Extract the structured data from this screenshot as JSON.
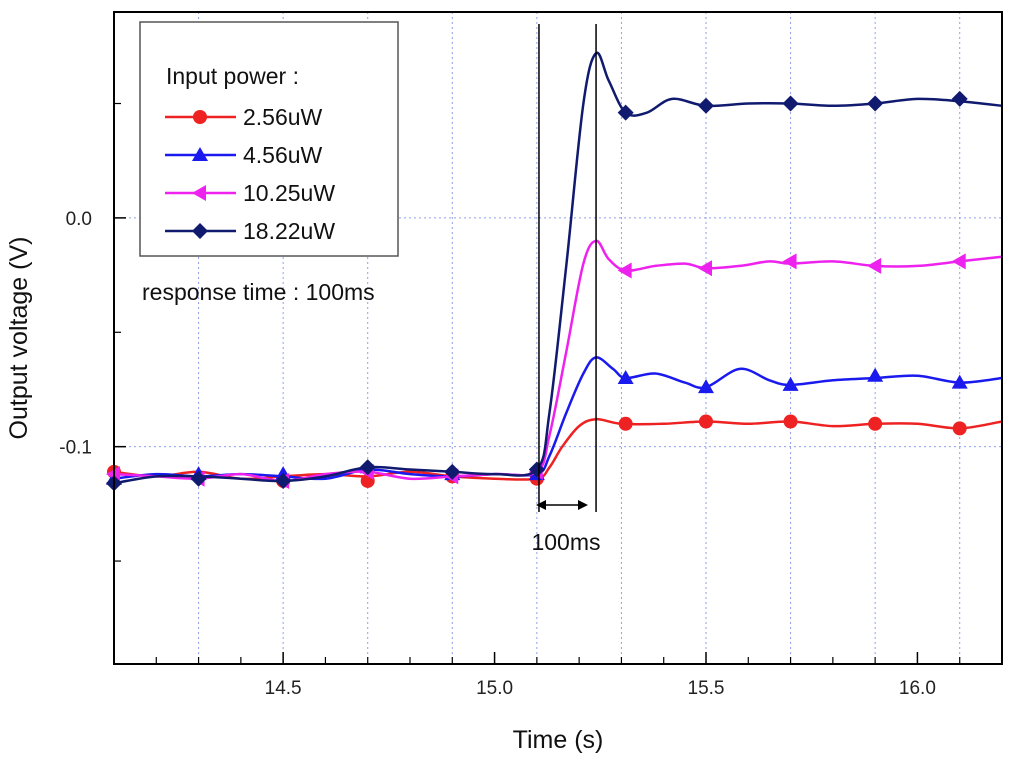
{
  "chart_data": {
    "type": "line",
    "title": "",
    "xlabel": "Time (s)",
    "ylabel": "Output voltage (V)",
    "xlim": [
      14.1,
      16.2
    ],
    "ylim": [
      -0.195,
      0.09
    ],
    "x_ticks": [
      {
        "value": 14.5,
        "label": "14.5"
      },
      {
        "value": 15.0,
        "label": "15.0"
      },
      {
        "value": 15.5,
        "label": "15.5"
      },
      {
        "value": 16.0,
        "label": "16.0"
      }
    ],
    "x_minor_ticks": [
      14.2,
      14.3,
      14.4,
      14.6,
      14.7,
      14.8,
      14.9,
      15.1,
      15.2,
      15.3,
      15.4,
      15.6,
      15.7,
      15.8,
      15.9,
      16.1
    ],
    "y_ticks": [
      {
        "value": 0.0,
        "label": "0.0"
      },
      {
        "value": -0.1,
        "label": "-0.1"
      }
    ],
    "y_minor_ticks": [
      0.05,
      -0.05,
      -0.15
    ],
    "grid_x": [
      14.3,
      14.5,
      14.7,
      14.9,
      15.1,
      15.3,
      15.5,
      15.7,
      15.9,
      16.1
    ],
    "grid_y": [
      0.0,
      -0.1
    ],
    "grid": true,
    "legend": {
      "title": "Input power :",
      "position": "top-left"
    },
    "series": [
      {
        "name": "2.56uW",
        "color": "#ee2222",
        "marker": "circle",
        "line": [
          [
            14.1,
            -0.111
          ],
          [
            14.2,
            -0.113
          ],
          [
            14.3,
            -0.111
          ],
          [
            14.4,
            -0.114
          ],
          [
            14.5,
            -0.113
          ],
          [
            14.6,
            -0.112
          ],
          [
            14.7,
            -0.113
          ],
          [
            14.8,
            -0.111
          ],
          [
            14.9,
            -0.113
          ],
          [
            15.0,
            -0.114
          ],
          [
            15.1,
            -0.114
          ],
          [
            15.13,
            -0.109
          ],
          [
            15.16,
            -0.1
          ],
          [
            15.2,
            -0.091
          ],
          [
            15.24,
            -0.088
          ],
          [
            15.3,
            -0.09
          ],
          [
            15.4,
            -0.09
          ],
          [
            15.5,
            -0.089
          ],
          [
            15.6,
            -0.09
          ],
          [
            15.7,
            -0.089
          ],
          [
            15.8,
            -0.091
          ],
          [
            15.9,
            -0.09
          ],
          [
            16.0,
            -0.09
          ],
          [
            16.1,
            -0.092
          ],
          [
            16.2,
            -0.089
          ]
        ],
        "markers": [
          [
            14.1,
            -0.111
          ],
          [
            14.5,
            -0.115
          ],
          [
            14.7,
            -0.115
          ],
          [
            14.9,
            -0.113
          ],
          [
            15.1,
            -0.114
          ],
          [
            15.31,
            -0.09
          ],
          [
            15.5,
            -0.089
          ],
          [
            15.7,
            -0.089
          ],
          [
            15.9,
            -0.09
          ],
          [
            16.1,
            -0.092
          ]
        ]
      },
      {
        "name": "4.56uW",
        "color": "#1a1aee",
        "marker": "triangle-up",
        "line": [
          [
            14.1,
            -0.114
          ],
          [
            14.2,
            -0.112
          ],
          [
            14.3,
            -0.113
          ],
          [
            14.4,
            -0.112
          ],
          [
            14.5,
            -0.113
          ],
          [
            14.6,
            -0.114
          ],
          [
            14.7,
            -0.11
          ],
          [
            14.8,
            -0.112
          ],
          [
            14.9,
            -0.113
          ],
          [
            15.0,
            -0.112
          ],
          [
            15.1,
            -0.112
          ],
          [
            15.13,
            -0.104
          ],
          [
            15.17,
            -0.085
          ],
          [
            15.21,
            -0.068
          ],
          [
            15.24,
            -0.061
          ],
          [
            15.28,
            -0.066
          ],
          [
            15.31,
            -0.07
          ],
          [
            15.38,
            -0.068
          ],
          [
            15.45,
            -0.072
          ],
          [
            15.5,
            -0.074
          ],
          [
            15.58,
            -0.066
          ],
          [
            15.65,
            -0.071
          ],
          [
            15.7,
            -0.073
          ],
          [
            15.8,
            -0.071
          ],
          [
            15.9,
            -0.07
          ],
          [
            16.0,
            -0.069
          ],
          [
            16.1,
            -0.072
          ],
          [
            16.2,
            -0.07
          ]
        ],
        "markers": [
          [
            14.1,
            -0.114
          ],
          [
            14.3,
            -0.112
          ],
          [
            14.5,
            -0.112
          ],
          [
            14.7,
            -0.109
          ],
          [
            14.9,
            -0.112
          ],
          [
            15.1,
            -0.112
          ],
          [
            15.31,
            -0.07
          ],
          [
            15.5,
            -0.074
          ],
          [
            15.7,
            -0.073
          ],
          [
            15.9,
            -0.069
          ],
          [
            16.1,
            -0.072
          ]
        ]
      },
      {
        "name": "10.25uW",
        "color": "#ee22ee",
        "marker": "triangle-left",
        "line": [
          [
            14.1,
            -0.112
          ],
          [
            14.2,
            -0.113
          ],
          [
            14.3,
            -0.114
          ],
          [
            14.4,
            -0.112
          ],
          [
            14.5,
            -0.115
          ],
          [
            14.6,
            -0.112
          ],
          [
            14.7,
            -0.111
          ],
          [
            14.8,
            -0.114
          ],
          [
            14.9,
            -0.113
          ],
          [
            15.0,
            -0.112
          ],
          [
            15.1,
            -0.111
          ],
          [
            15.13,
            -0.095
          ],
          [
            15.17,
            -0.058
          ],
          [
            15.21,
            -0.02
          ],
          [
            15.24,
            -0.01
          ],
          [
            15.27,
            -0.018
          ],
          [
            15.31,
            -0.023
          ],
          [
            15.38,
            -0.021
          ],
          [
            15.45,
            -0.02
          ],
          [
            15.5,
            -0.022
          ],
          [
            15.58,
            -0.021
          ],
          [
            15.65,
            -0.019
          ],
          [
            15.7,
            -0.02
          ],
          [
            15.8,
            -0.019
          ],
          [
            15.9,
            -0.021
          ],
          [
            16.0,
            -0.021
          ],
          [
            16.1,
            -0.019
          ],
          [
            16.2,
            -0.017
          ]
        ],
        "markers": [
          [
            14.1,
            -0.112
          ],
          [
            14.3,
            -0.114
          ],
          [
            14.5,
            -0.115
          ],
          [
            14.7,
            -0.111
          ],
          [
            14.9,
            -0.113
          ],
          [
            15.1,
            -0.111
          ],
          [
            15.31,
            -0.023
          ],
          [
            15.5,
            -0.022
          ],
          [
            15.7,
            -0.019
          ],
          [
            15.9,
            -0.021
          ],
          [
            16.1,
            -0.019
          ]
        ]
      },
      {
        "name": "18.22uW",
        "color": "#101a6e",
        "marker": "diamond",
        "line": [
          [
            14.1,
            -0.116
          ],
          [
            14.2,
            -0.113
          ],
          [
            14.3,
            -0.113
          ],
          [
            14.4,
            -0.114
          ],
          [
            14.5,
            -0.115
          ],
          [
            14.6,
            -0.113
          ],
          [
            14.7,
            -0.109
          ],
          [
            14.8,
            -0.11
          ],
          [
            14.9,
            -0.111
          ],
          [
            15.0,
            -0.112
          ],
          [
            15.1,
            -0.11
          ],
          [
            15.13,
            -0.085
          ],
          [
            15.17,
            -0.02
          ],
          [
            15.21,
            0.05
          ],
          [
            15.24,
            0.072
          ],
          [
            15.27,
            0.06
          ],
          [
            15.31,
            0.046
          ],
          [
            15.36,
            0.046
          ],
          [
            15.42,
            0.052
          ],
          [
            15.5,
            0.049
          ],
          [
            15.6,
            0.05
          ],
          [
            15.7,
            0.05
          ],
          [
            15.8,
            0.049
          ],
          [
            15.9,
            0.05
          ],
          [
            16.0,
            0.052
          ],
          [
            16.1,
            0.051
          ],
          [
            16.2,
            0.049
          ]
        ],
        "markers": [
          [
            14.1,
            -0.116
          ],
          [
            14.3,
            -0.114
          ],
          [
            14.5,
            -0.115
          ],
          [
            14.7,
            -0.109
          ],
          [
            14.9,
            -0.111
          ],
          [
            15.1,
            -0.11
          ],
          [
            15.31,
            0.046
          ],
          [
            15.5,
            0.049
          ],
          [
            15.7,
            0.05
          ],
          [
            15.9,
            0.05
          ],
          [
            16.1,
            0.052
          ]
        ]
      }
    ],
    "annotations": [
      {
        "id": "response_time",
        "text": "response time : 100ms"
      },
      {
        "id": "delta",
        "text": "100ms",
        "from_x": 15.105,
        "to_x": 15.24
      }
    ]
  }
}
